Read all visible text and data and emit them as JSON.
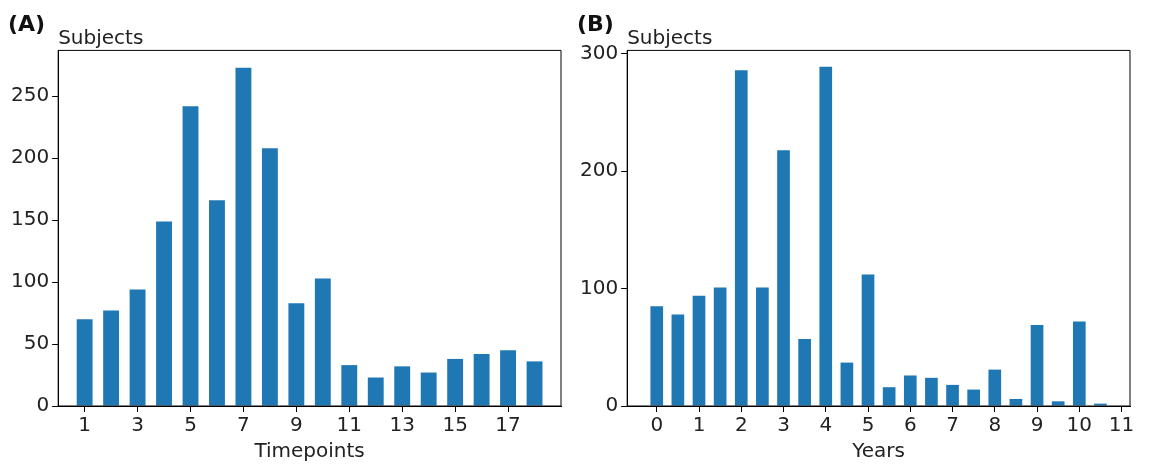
{
  "chart_data": [
    {
      "type": "bar",
      "title": "(A)",
      "ylabel": "Subjects",
      "xlabel": "Timepoints",
      "x": [
        1,
        2,
        3,
        4,
        5,
        6,
        7,
        8,
        9,
        10,
        11,
        12,
        13,
        14,
        15,
        16,
        17,
        18
      ],
      "series": [
        {
          "color": "#1f77b4",
          "values": [
            70,
            77,
            94,
            149,
            242,
            166,
            273,
            208,
            83,
            103,
            33,
            23,
            32,
            27,
            38,
            42,
            45,
            36
          ]
        }
      ],
      "xlim": [
        0,
        19
      ],
      "xticks": [
        1,
        3,
        5,
        7,
        9,
        11,
        13,
        15,
        17
      ],
      "ylim": [
        0,
        287
      ],
      "yticks": [
        0,
        50,
        100,
        150,
        200,
        250
      ]
    },
    {
      "type": "bar",
      "title": "(B)",
      "ylabel": "Subjects",
      "xlabel": "Years",
      "x": [
        0,
        0.5,
        1,
        1.5,
        2,
        2.5,
        3,
        3.5,
        4,
        4.5,
        5,
        5.5,
        6,
        6.5,
        7,
        7.5,
        8,
        8.5,
        9,
        9.5,
        10,
        10.5
      ],
      "series": [
        {
          "color": "#1f77b4",
          "values": [
            85,
            78,
            94,
            101,
            286,
            101,
            218,
            57,
            289,
            37,
            112,
            16,
            26,
            24,
            18,
            14,
            31,
            6,
            69,
            4,
            72,
            2
          ]
        }
      ],
      "xlim": [
        -0.7,
        11.2
      ],
      "xticks": [
        0,
        1,
        2,
        3,
        4,
        5,
        6,
        7,
        8,
        9,
        10,
        11
      ],
      "ylim": [
        0,
        303
      ],
      "yticks": [
        0,
        100,
        200,
        300
      ]
    }
  ]
}
